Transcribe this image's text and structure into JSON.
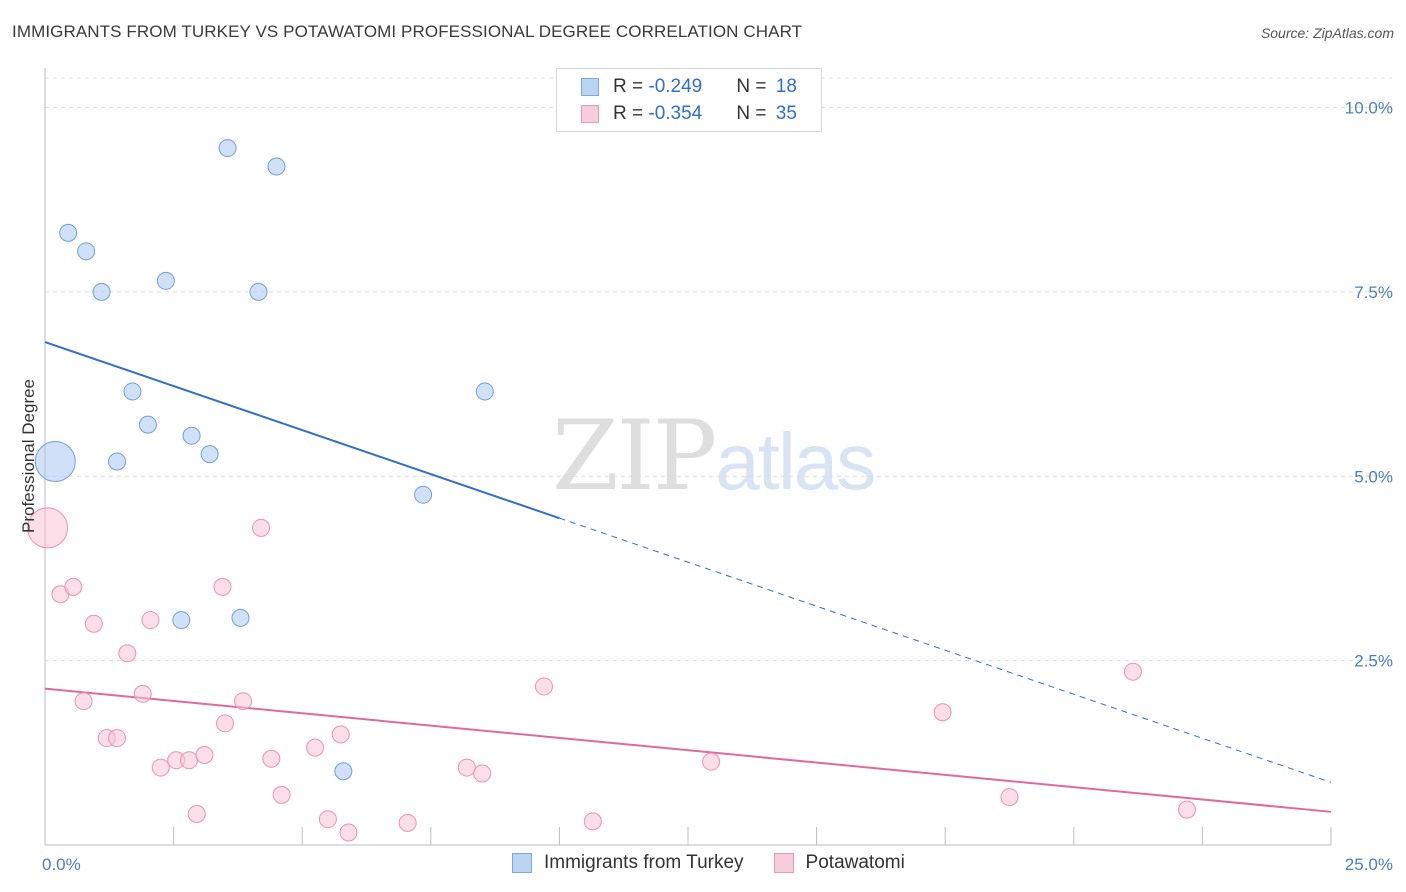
{
  "title": "IMMIGRANTS FROM TURKEY VS POTAWATOMI PROFESSIONAL DEGREE CORRELATION CHART",
  "source": "Source: ZipAtlas.com",
  "watermark": {
    "zip": "ZIP",
    "atlas": "atlas"
  },
  "legend": {
    "rows": [
      {
        "r_label": "R = ",
        "r_value": "-0.249",
        "n_label": "N = ",
        "n_value": "18"
      },
      {
        "r_label": "R = ",
        "r_value": "-0.354",
        "n_label": "N = ",
        "n_value": "35"
      }
    ]
  },
  "chart_data": {
    "type": "scatter",
    "title": "IMMIGRANTS FROM TURKEY VS POTAWATOMI PROFESSIONAL DEGREE CORRELATION CHART",
    "xlabel": "",
    "ylabel": "Professional Degree",
    "xlim": [
      0,
      25
    ],
    "ylim": [
      0,
      10.4
    ],
    "x_tick_labels": [
      {
        "value": 0,
        "label": "0.0%"
      },
      {
        "value": 25,
        "label": "25.0%"
      }
    ],
    "y_ticks": [
      {
        "value": 2.5,
        "label": "2.5%"
      },
      {
        "value": 5.0,
        "label": "5.0%"
      },
      {
        "value": 7.5,
        "label": "7.5%"
      },
      {
        "value": 10.0,
        "label": "10.0%"
      }
    ],
    "series": [
      {
        "name": "Immigrants from Turkey",
        "color": "#a9c8f0",
        "edge": "#6f9fdc",
        "line_color": "#2f6fd0",
        "trend": {
          "x0": 0,
          "y0": 6.82,
          "x_solid_end": 10,
          "x1": 25,
          "y1": 0.85
        },
        "points": [
          {
            "x": 0.2,
            "y": 5.2,
            "big": true
          },
          {
            "x": 0.45,
            "y": 8.3
          },
          {
            "x": 0.8,
            "y": 8.05
          },
          {
            "x": 1.1,
            "y": 7.5
          },
          {
            "x": 2.35,
            "y": 7.65
          },
          {
            "x": 4.15,
            "y": 7.5
          },
          {
            "x": 3.55,
            "y": 9.45
          },
          {
            "x": 4.5,
            "y": 9.2
          },
          {
            "x": 1.7,
            "y": 6.15
          },
          {
            "x": 2.0,
            "y": 5.7
          },
          {
            "x": 2.85,
            "y": 5.55
          },
          {
            "x": 3.2,
            "y": 5.3
          },
          {
            "x": 1.4,
            "y": 5.2
          },
          {
            "x": 8.55,
            "y": 6.15
          },
          {
            "x": 7.35,
            "y": 4.75
          },
          {
            "x": 2.65,
            "y": 3.05
          },
          {
            "x": 3.8,
            "y": 3.08
          },
          {
            "x": 5.8,
            "y": 1.0
          }
        ]
      },
      {
        "name": "Potawatomi",
        "color": "#f7c3d3",
        "edge": "#ea93b0",
        "line_color": "#e06b96",
        "trend": {
          "x0": 0,
          "y0": 2.12,
          "x_solid_end": 25,
          "x1": 25,
          "y1": 0.45
        },
        "points": [
          {
            "x": 0.05,
            "y": 4.3,
            "big": true
          },
          {
            "x": 4.2,
            "y": 4.3
          },
          {
            "x": 0.3,
            "y": 3.4
          },
          {
            "x": 0.55,
            "y": 3.5
          },
          {
            "x": 3.45,
            "y": 3.5
          },
          {
            "x": 0.95,
            "y": 3.0
          },
          {
            "x": 2.05,
            "y": 3.05
          },
          {
            "x": 1.6,
            "y": 2.6
          },
          {
            "x": 0.75,
            "y": 1.95
          },
          {
            "x": 1.9,
            "y": 2.05
          },
          {
            "x": 3.85,
            "y": 1.95
          },
          {
            "x": 3.5,
            "y": 1.65
          },
          {
            "x": 1.2,
            "y": 1.45
          },
          {
            "x": 1.4,
            "y": 1.45
          },
          {
            "x": 2.25,
            "y": 1.05
          },
          {
            "x": 2.55,
            "y": 1.15
          },
          {
            "x": 2.8,
            "y": 1.15
          },
          {
            "x": 3.1,
            "y": 1.22
          },
          {
            "x": 4.4,
            "y": 1.17
          },
          {
            "x": 5.25,
            "y": 1.32
          },
          {
            "x": 5.75,
            "y": 1.5
          },
          {
            "x": 8.2,
            "y": 1.05
          },
          {
            "x": 8.5,
            "y": 0.97
          },
          {
            "x": 9.7,
            "y": 2.15
          },
          {
            "x": 12.95,
            "y": 1.13
          },
          {
            "x": 17.45,
            "y": 1.8
          },
          {
            "x": 21.15,
            "y": 2.35
          },
          {
            "x": 18.75,
            "y": 0.65
          },
          {
            "x": 22.2,
            "y": 0.48
          },
          {
            "x": 2.95,
            "y": 0.42
          },
          {
            "x": 4.6,
            "y": 0.68
          },
          {
            "x": 5.5,
            "y": 0.35
          },
          {
            "x": 5.9,
            "y": 0.17
          },
          {
            "x": 7.05,
            "y": 0.3
          },
          {
            "x": 10.65,
            "y": 0.32
          }
        ]
      }
    ]
  }
}
